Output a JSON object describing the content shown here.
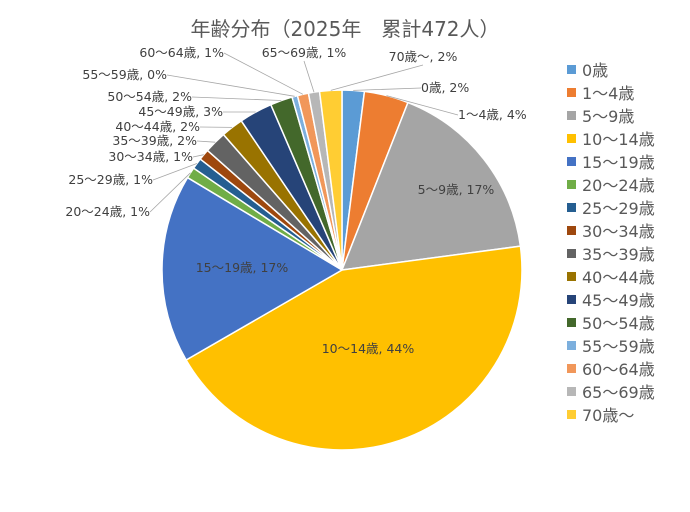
{
  "chart_data": {
    "type": "pie",
    "title": "年齢分布（2025年　累計472人）",
    "series": [
      {
        "label": "0歳",
        "value": 2,
        "data_label": "0歳, 2%",
        "color": "#5B9BD5"
      },
      {
        "label": "1～4歳",
        "value": 4,
        "data_label": "1～4歳, 4%",
        "color": "#ED7D31"
      },
      {
        "label": "5～9歳",
        "value": 17,
        "data_label": "5～9歳, 17%",
        "color": "#A5A5A5"
      },
      {
        "label": "10～14歳",
        "value": 44,
        "data_label": "10～14歳, 44%",
        "color": "#FFC000"
      },
      {
        "label": "15～19歳",
        "value": 17,
        "data_label": "15～19歳, 17%",
        "color": "#4472C4"
      },
      {
        "label": "20～24歳",
        "value": 1,
        "data_label": "20～24歳, 1%",
        "color": "#70AD47"
      },
      {
        "label": "25～29歳",
        "value": 1,
        "data_label": "25～29歳, 1%",
        "color": "#255E91"
      },
      {
        "label": "30～34歳",
        "value": 1,
        "data_label": "30～34歳, 1%",
        "color": "#9E480E"
      },
      {
        "label": "35～39歳",
        "value": 2,
        "data_label": "35～39歳, 2%",
        "color": "#636363"
      },
      {
        "label": "40～44歳",
        "value": 2,
        "data_label": "40～44歳, 2%",
        "color": "#997300"
      },
      {
        "label": "45～49歳",
        "value": 3,
        "data_label": "45～49歳, 3%",
        "color": "#264478"
      },
      {
        "label": "50～54歳",
        "value": 2,
        "data_label": "50～54歳, 2%",
        "color": "#43682B"
      },
      {
        "label": "55～59歳",
        "value": 0.5,
        "data_label": "55～59歳, 0%",
        "color": "#7CAFDD"
      },
      {
        "label": "60～64歳",
        "value": 1,
        "data_label": "60～64歳, 1%",
        "color": "#F1975A"
      },
      {
        "label": "65～69歳",
        "value": 1,
        "data_label": "65～69歳, 1%",
        "color": "#B7B7B7"
      },
      {
        "label": "70歳～",
        "value": 2,
        "data_label": "70歳～, 2%",
        "color": "#FFCD33"
      }
    ],
    "legend_position": "right"
  }
}
